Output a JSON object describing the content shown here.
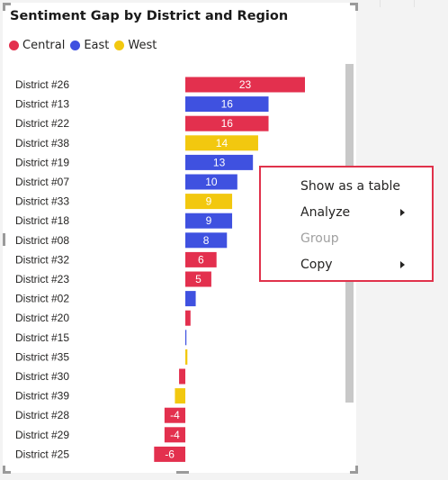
{
  "visual": {
    "title": "Sentiment Gap by District and Region"
  },
  "legend": [
    {
      "label": "Central",
      "color": "#e3304e"
    },
    {
      "label": "East",
      "color": "#3f51e0"
    },
    {
      "label": "West",
      "color": "#f2c80f"
    }
  ],
  "chart_data": {
    "type": "bar",
    "orientation": "horizontal",
    "title": "Sentiment Gap by District and Region",
    "xlim": [
      -7,
      25
    ],
    "categories": [
      "District #26",
      "District #13",
      "District #22",
      "District #38",
      "District #19",
      "District #07",
      "District #33",
      "District #18",
      "District #08",
      "District #32",
      "District #23",
      "District #02",
      "District #20",
      "District #15",
      "District #35",
      "District #30",
      "District #39",
      "District #28",
      "District #29",
      "District #25"
    ],
    "values": [
      23,
      16,
      16,
      14,
      13,
      10,
      9,
      9,
      8,
      6,
      5,
      2,
      1,
      0.2,
      0.4,
      -1.2,
      -2,
      -4,
      -4,
      -6
    ],
    "regions": [
      "Central",
      "East",
      "Central",
      "West",
      "East",
      "East",
      "West",
      "East",
      "East",
      "Central",
      "Central",
      "East",
      "Central",
      "East",
      "West",
      "Central",
      "West",
      "Central",
      "Central",
      "Central"
    ],
    "data_labels": [
      "23",
      "16",
      "16",
      "14",
      "13",
      "10",
      "9",
      "9",
      "8",
      "6",
      "5",
      "",
      "",
      "",
      "",
      "",
      "",
      "-4",
      "-4",
      "-6"
    ],
    "series": [
      {
        "name": "Central",
        "color": "#e3304e"
      },
      {
        "name": "East",
        "color": "#3f51e0"
      },
      {
        "name": "West",
        "color": "#f2c80f"
      }
    ],
    "legend_position": "top-left",
    "grid": false
  },
  "context_menu": {
    "items": [
      {
        "label": "Show as a table",
        "enabled": true,
        "submenu": false
      },
      {
        "label": "Analyze",
        "enabled": true,
        "submenu": true
      },
      {
        "label": "Group",
        "enabled": false,
        "submenu": false
      },
      {
        "label": "Copy",
        "enabled": true,
        "submenu": true
      }
    ]
  }
}
